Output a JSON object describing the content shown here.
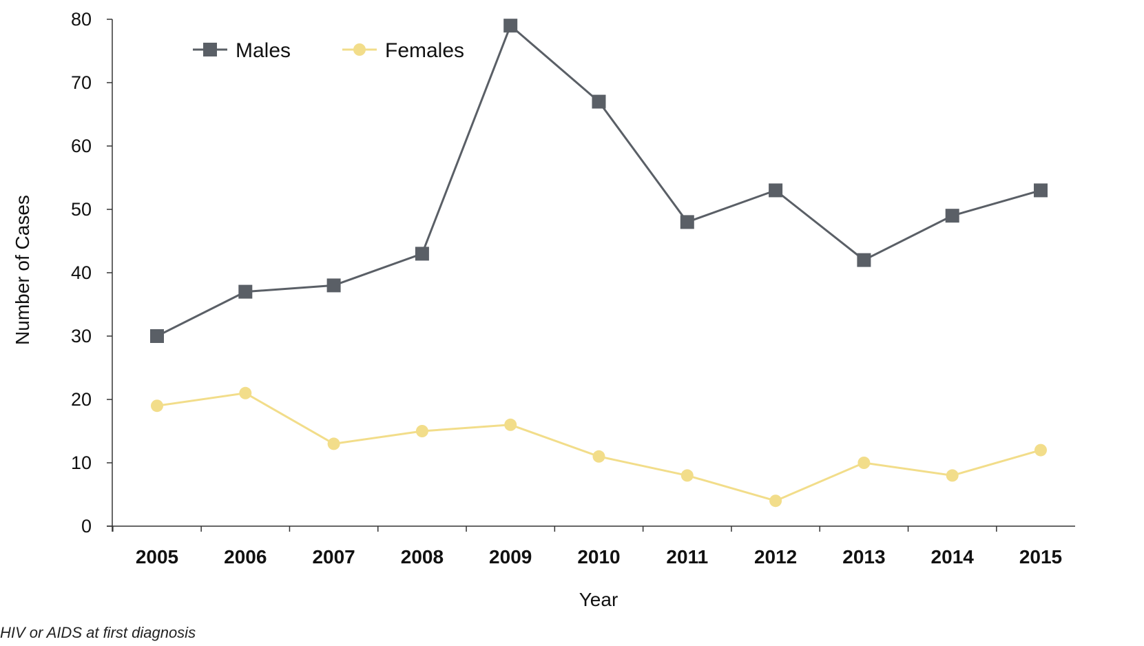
{
  "chart_data": {
    "type": "line",
    "x": [
      "2005",
      "2006",
      "2007",
      "2008",
      "2009",
      "2010",
      "2011",
      "2012",
      "2013",
      "2014",
      "2015"
    ],
    "series": [
      {
        "name": "Males",
        "values": [
          30,
          37,
          38,
          43,
          79,
          67,
          48,
          53,
          42,
          49,
          53
        ],
        "color": "#5a5f66",
        "marker": "square"
      },
      {
        "name": "Females",
        "values": [
          19,
          21,
          13,
          15,
          16,
          11,
          8,
          4,
          10,
          8,
          12
        ],
        "color": "#f2dd8a",
        "marker": "circle"
      }
    ],
    "xlabel": "Year",
    "ylabel": "Number of Cases",
    "ylim": [
      0,
      80
    ],
    "yticks": [
      0,
      10,
      20,
      30,
      40,
      50,
      60,
      70,
      80
    ],
    "grid": false,
    "legend_position": "top-left"
  },
  "footnote": "HIV or AIDS at first diagnosis"
}
